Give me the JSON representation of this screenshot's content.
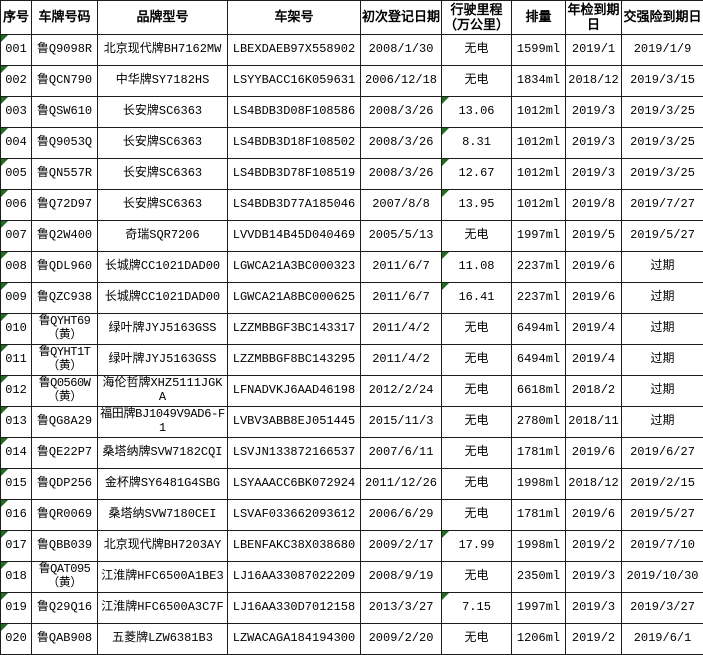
{
  "table": {
    "headers": [
      "序号",
      "车牌号码",
      "品牌型号",
      "车架号",
      "初次登记日期",
      "行驶里程（万公里）",
      "排量",
      "年检到期日",
      "交强险到期日"
    ],
    "rows": [
      [
        "001",
        "鲁Q9098R",
        "北京现代牌BH7162MW",
        "LBEXDAEB97X558902",
        "2008/1/30",
        "无电",
        "1599ml",
        "2019/1",
        "2019/1/9"
      ],
      [
        "002",
        "鲁QCN790",
        "中华牌SY7182HS",
        "LSYYBACC16K059631",
        "2006/12/18",
        "无电",
        "1834ml",
        "2018/12",
        "2019/3/15"
      ],
      [
        "003",
        "鲁QSW610",
        "长安牌SC6363",
        "LS4BDB3D08F108586",
        "2008/3/26",
        "13.06",
        "1012ml",
        "2019/3",
        "2019/3/25"
      ],
      [
        "004",
        "鲁Q9053Q",
        "长安牌SC6363",
        "LS4BDB3D18F108502",
        "2008/3/26",
        "8.31",
        "1012ml",
        "2019/3",
        "2019/3/25"
      ],
      [
        "005",
        "鲁QN557R",
        "长安牌SC6363",
        "LS4BDB3D78F108519",
        "2008/3/26",
        "12.67",
        "1012ml",
        "2019/3",
        "2019/3/25"
      ],
      [
        "006",
        "鲁Q72D97",
        "长安牌SC6363",
        "LS4BDB3D77A185046",
        "2007/8/8",
        "13.95",
        "1012ml",
        "2019/8",
        "2019/7/27"
      ],
      [
        "007",
        "鲁Q2W400",
        "奇瑞SQR7206",
        "LVVDB14B45D040469",
        "2005/5/13",
        "无电",
        "1997ml",
        "2019/5",
        "2019/5/27"
      ],
      [
        "008",
        "鲁QDL960",
        "长城牌CC1021DAD00",
        "LGWCA21A3BC000323",
        "2011/6/7",
        "11.08",
        "2237ml",
        "2019/6",
        "过期"
      ],
      [
        "009",
        "鲁QZC938",
        "长城牌CC1021DAD00",
        "LGWCA21A8BC000625",
        "2011/6/7",
        "16.41",
        "2237ml",
        "2019/6",
        "过期"
      ],
      [
        "010",
        "鲁QYHT69（黄）",
        "绿叶牌JYJ5163GSS",
        "LZZMBBGF3BC143317",
        "2011/4/2",
        "无电",
        "6494ml",
        "2019/4",
        "过期"
      ],
      [
        "011",
        "鲁QYHT1T（黄）",
        "绿叶牌JYJ5163GSS",
        "LZZMBBGF8BC143295",
        "2011/4/2",
        "无电",
        "6494ml",
        "2019/4",
        "过期"
      ],
      [
        "012",
        "鲁Q0560W（黄）",
        "海伦哲牌XHZ5111JGKA",
        "LFNADVKJ6AAD46198",
        "2012/2/24",
        "无电",
        "6618ml",
        "2018/2",
        "过期"
      ],
      [
        "013",
        "鲁QG8A29",
        "福田牌BJ1049V9AD6-F1",
        "LVBV3ABB8EJ051445",
        "2015/11/3",
        "无电",
        "2780ml",
        "2018/11",
        "过期"
      ],
      [
        "014",
        "鲁QE22P7",
        "桑塔纳牌SVW7182CQI",
        "LSVJN133872166537",
        "2007/6/11",
        "无电",
        "1781ml",
        "2019/6",
        "2019/6/27"
      ],
      [
        "015",
        "鲁QDP256",
        "金杯牌SY6481G4SBG",
        "LSYAAACC6BK072924",
        "2011/12/26",
        "无电",
        "1998ml",
        "2018/12",
        "2019/2/15"
      ],
      [
        "016",
        "鲁QR0069",
        "桑塔纳SVW7180CEI",
        "LSVAF033662093612",
        "2006/6/29",
        "无电",
        "1781ml",
        "2019/6",
        "2019/5/27"
      ],
      [
        "017",
        "鲁QBB039",
        "北京现代牌BH7203AY",
        "LBENFAKC38X038680",
        "2009/2/17",
        "17.99",
        "1998ml",
        "2019/2",
        "2019/7/10"
      ],
      [
        "018",
        "鲁QAT095（黄）",
        "江淮牌HFC6500A1BE3",
        "LJ16AA33087022209",
        "2008/9/19",
        "无电",
        "2350ml",
        "2019/3",
        "2019/10/30"
      ],
      [
        "019",
        "鲁Q29Q16",
        "江淮牌HFC6500A3C7F",
        "LJ16AA330D7012158",
        "2013/3/27",
        "7.15",
        "1997ml",
        "2019/3",
        "2019/3/27"
      ],
      [
        "020",
        "鲁QAB908",
        "五菱牌LZW6381B3",
        "LZWACAGA184194300",
        "2009/2/20",
        "无电",
        "1206ml",
        "2019/2",
        "2019/6/1"
      ]
    ],
    "indicators": {
      "note_triangle_icon": "green-corner-triangle",
      "serial_flag_rows": [
        1,
        2,
        3,
        4,
        5,
        6,
        7,
        8,
        9,
        10,
        11,
        12,
        13,
        14,
        15,
        16,
        17,
        18,
        19,
        20
      ],
      "mileage_flag_rows": [
        3,
        4,
        5,
        6,
        8,
        9,
        17,
        19
      ]
    },
    "colors": {
      "flag_green": "#1e6e1e",
      "border": "#1c1c1c",
      "text": "#000000",
      "background": "#ffffff"
    },
    "small_text": {
      "plate_rows": [
        10,
        11,
        12,
        18
      ],
      "brand_rows": [
        13
      ]
    }
  }
}
